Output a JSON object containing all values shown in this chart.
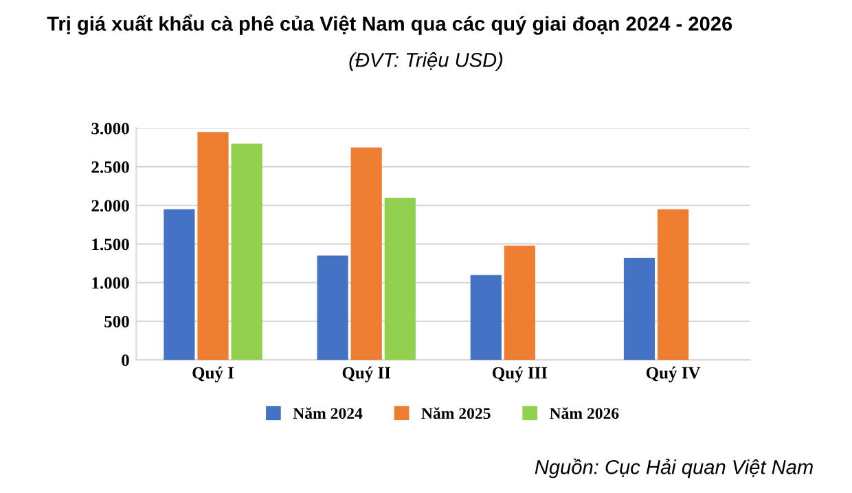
{
  "chart_data": {
    "type": "bar",
    "title": "Trị giá xuất khẩu cà phê của Việt Nam qua các quý giai đoạn 2024 - 2026",
    "subtitle": "(ĐVT: Triệu USD)",
    "categories": [
      "Quý I",
      "Quý II",
      "Quý III",
      "Quý IV"
    ],
    "series": [
      {
        "name": "Năm 2024",
        "color": "#4472c4",
        "values": [
          1950,
          1350,
          1100,
          1320
        ]
      },
      {
        "name": "Năm 2025",
        "color": "#ed7d31",
        "values": [
          2950,
          2750,
          1480,
          1950
        ]
      },
      {
        "name": "Năm 2026",
        "color": "#92d050",
        "values": [
          2800,
          2100,
          null,
          null
        ]
      }
    ],
    "ylim": [
      0,
      3000
    ],
    "yticks": [
      {
        "value": 0,
        "label": "0"
      },
      {
        "value": 500,
        "label": "500"
      },
      {
        "value": 1000,
        "label": "1.000"
      },
      {
        "value": 1500,
        "label": "1.500"
      },
      {
        "value": 2000,
        "label": "2.000"
      },
      {
        "value": 2500,
        "label": "2.500"
      },
      {
        "value": 3000,
        "label": "3.000"
      }
    ],
    "grid": "y",
    "legend": "bottom",
    "annotations": [
      "Nguồn: Cục Hải quan Việt Nam"
    ]
  }
}
